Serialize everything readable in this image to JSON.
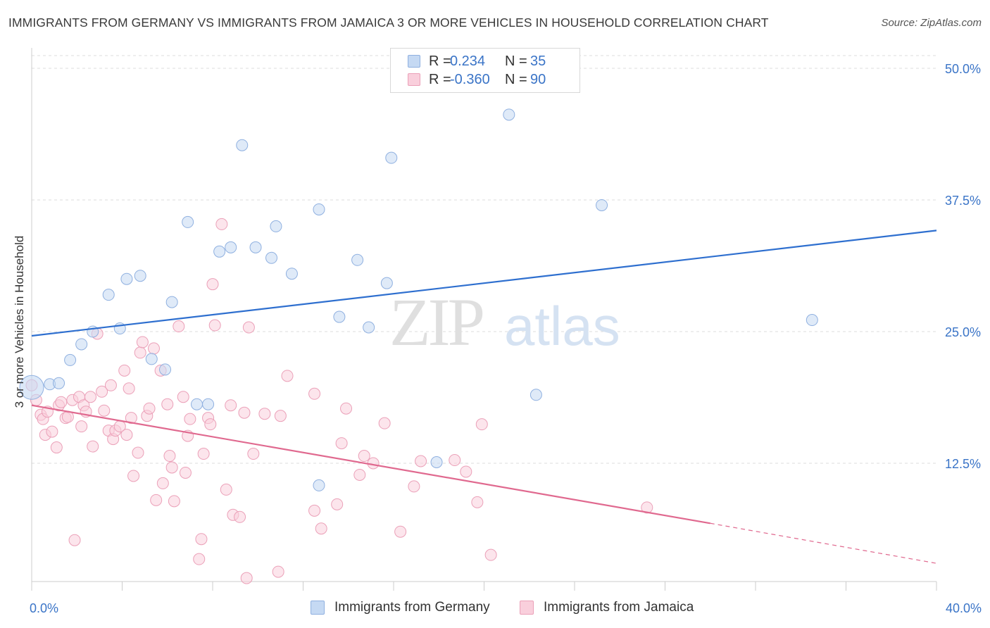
{
  "title": "IMMIGRANTS FROM GERMANY VS IMMIGRANTS FROM JAMAICA 3 OR MORE VEHICLES IN HOUSEHOLD CORRELATION CHART",
  "source": "Source: ZipAtlas.com",
  "watermark": {
    "zip": "ZIP",
    "atlas": "atlas"
  },
  "legend": {
    "r_label": "R =",
    "n_label": "N =",
    "germany": {
      "r": "0.234",
      "n": "35"
    },
    "jamaica": {
      "r": "-0.360",
      "n": "90"
    }
  },
  "colors": {
    "germany_fill": "#c5d9f3",
    "germany_stroke": "#8fb0e0",
    "germany_line": "#2e6fcf",
    "jamaica_fill": "#f9cfdc",
    "jamaica_stroke": "#eba0b8",
    "jamaica_line": "#e0698f",
    "tick_label": "#3a74c7",
    "grid": "#dddddd"
  },
  "chart_data": {
    "type": "scatter",
    "title": "IMMIGRANTS FROM GERMANY VS IMMIGRANTS FROM JAMAICA 3 OR MORE VEHICLES IN HOUSEHOLD CORRELATION CHART",
    "xlabel": "",
    "ylabel": "3 or more Vehicles in Household",
    "xlim": [
      0,
      40
    ],
    "ylim": [
      0,
      50
    ],
    "x_tick_labels": [
      "0.0%",
      "40.0%"
    ],
    "y_ticks": [
      12.5,
      25.0,
      37.5,
      50.0
    ],
    "y_tick_labels": [
      "12.5%",
      "25.0%",
      "37.5%",
      "50.0%"
    ],
    "grid": true,
    "legend_position": "top-center",
    "series": [
      {
        "name": "Immigrants from Germany",
        "r": 0.234,
        "n": 35,
        "trend": {
          "x": [
            0,
            40
          ],
          "y": [
            24.6,
            34.6
          ]
        },
        "points": [
          [
            0.0,
            19.7
          ],
          [
            0.8,
            20.0
          ],
          [
            1.2,
            20.1
          ],
          [
            1.7,
            22.3
          ],
          [
            2.2,
            23.8
          ],
          [
            2.7,
            25.0
          ],
          [
            3.4,
            28.5
          ],
          [
            3.9,
            25.3
          ],
          [
            4.2,
            30.0
          ],
          [
            4.8,
            30.3
          ],
          [
            5.3,
            22.4
          ],
          [
            5.9,
            21.4
          ],
          [
            6.2,
            27.8
          ],
          [
            6.9,
            35.4
          ],
          [
            7.3,
            18.1
          ],
          [
            7.8,
            18.1
          ],
          [
            8.3,
            32.6
          ],
          [
            8.8,
            33.0
          ],
          [
            9.3,
            42.7
          ],
          [
            9.9,
            33.0
          ],
          [
            10.6,
            32.0
          ],
          [
            10.8,
            35.0
          ],
          [
            11.5,
            30.5
          ],
          [
            12.7,
            10.4
          ],
          [
            12.7,
            36.6
          ],
          [
            13.6,
            26.4
          ],
          [
            14.4,
            31.8
          ],
          [
            14.9,
            25.4
          ],
          [
            15.7,
            29.6
          ],
          [
            15.9,
            41.5
          ],
          [
            17.9,
            12.6
          ],
          [
            21.1,
            45.6
          ],
          [
            22.3,
            19.0
          ],
          [
            25.2,
            37.0
          ],
          [
            34.5,
            26.1
          ]
        ]
      },
      {
        "name": "Immigrants from Jamaica",
        "r": -0.36,
        "n": 90,
        "trend": {
          "x": [
            0,
            30
          ],
          "y": [
            18.0,
            6.8
          ]
        },
        "trend_dashed": {
          "x": [
            30,
            40
          ],
          "y": [
            6.8,
            3.0
          ]
        },
        "points": [
          [
            0.2,
            18.5
          ],
          [
            0.4,
            17.1
          ],
          [
            0.5,
            16.7
          ],
          [
            0.6,
            15.2
          ],
          [
            0.7,
            17.4
          ],
          [
            0.9,
            15.5
          ],
          [
            1.1,
            14.0
          ],
          [
            1.2,
            18.0
          ],
          [
            1.3,
            18.3
          ],
          [
            1.5,
            16.8
          ],
          [
            1.6,
            16.9
          ],
          [
            1.8,
            18.5
          ],
          [
            1.9,
            5.2
          ],
          [
            2.1,
            18.8
          ],
          [
            2.2,
            16.0
          ],
          [
            2.3,
            18.0
          ],
          [
            2.4,
            17.4
          ],
          [
            2.6,
            18.8
          ],
          [
            2.7,
            14.1
          ],
          [
            2.9,
            24.8
          ],
          [
            3.1,
            19.3
          ],
          [
            3.2,
            17.5
          ],
          [
            3.4,
            15.6
          ],
          [
            3.5,
            19.9
          ],
          [
            3.6,
            14.8
          ],
          [
            3.7,
            15.6
          ],
          [
            3.9,
            16.0
          ],
          [
            4.1,
            21.3
          ],
          [
            4.2,
            15.2
          ],
          [
            4.3,
            19.6
          ],
          [
            4.4,
            16.8
          ],
          [
            4.5,
            11.3
          ],
          [
            4.7,
            13.5
          ],
          [
            4.8,
            23.0
          ],
          [
            4.9,
            24.0
          ],
          [
            5.1,
            17.0
          ],
          [
            5.2,
            17.7
          ],
          [
            5.4,
            23.4
          ],
          [
            5.5,
            9.0
          ],
          [
            5.7,
            21.3
          ],
          [
            5.8,
            10.6
          ],
          [
            6.0,
            18.1
          ],
          [
            6.1,
            13.2
          ],
          [
            6.2,
            12.1
          ],
          [
            6.3,
            8.9
          ],
          [
            6.5,
            25.5
          ],
          [
            6.7,
            18.8
          ],
          [
            6.8,
            11.6
          ],
          [
            6.9,
            15.1
          ],
          [
            7.0,
            16.7
          ],
          [
            7.4,
            3.4
          ],
          [
            7.5,
            5.3
          ],
          [
            7.6,
            13.4
          ],
          [
            7.8,
            16.8
          ],
          [
            7.9,
            16.2
          ],
          [
            8.0,
            29.5
          ],
          [
            8.1,
            25.6
          ],
          [
            8.4,
            35.2
          ],
          [
            8.6,
            10.0
          ],
          [
            8.8,
            18.0
          ],
          [
            8.9,
            7.6
          ],
          [
            9.2,
            7.4
          ],
          [
            9.4,
            17.3
          ],
          [
            9.5,
            1.6
          ],
          [
            9.6,
            25.4
          ],
          [
            9.8,
            13.4
          ],
          [
            10.3,
            17.2
          ],
          [
            10.9,
            2.2
          ],
          [
            11.0,
            17.0
          ],
          [
            11.3,
            20.8
          ],
          [
            12.5,
            8.0
          ],
          [
            12.5,
            19.1
          ],
          [
            12.8,
            6.3
          ],
          [
            13.5,
            8.6
          ],
          [
            13.7,
            14.4
          ],
          [
            13.9,
            17.7
          ],
          [
            14.5,
            11.4
          ],
          [
            14.7,
            13.2
          ],
          [
            15.1,
            12.5
          ],
          [
            15.6,
            16.3
          ],
          [
            16.3,
            6.0
          ],
          [
            16.9,
            10.3
          ],
          [
            17.2,
            12.7
          ],
          [
            18.7,
            12.8
          ],
          [
            19.2,
            11.7
          ],
          [
            19.7,
            8.8
          ],
          [
            19.9,
            16.2
          ],
          [
            20.3,
            3.8
          ],
          [
            27.2,
            8.3
          ],
          [
            0.0,
            19.9
          ]
        ]
      }
    ]
  },
  "bottom_legend": {
    "germany_label": "Immigrants from Germany",
    "jamaica_label": "Immigrants from Jamaica"
  }
}
